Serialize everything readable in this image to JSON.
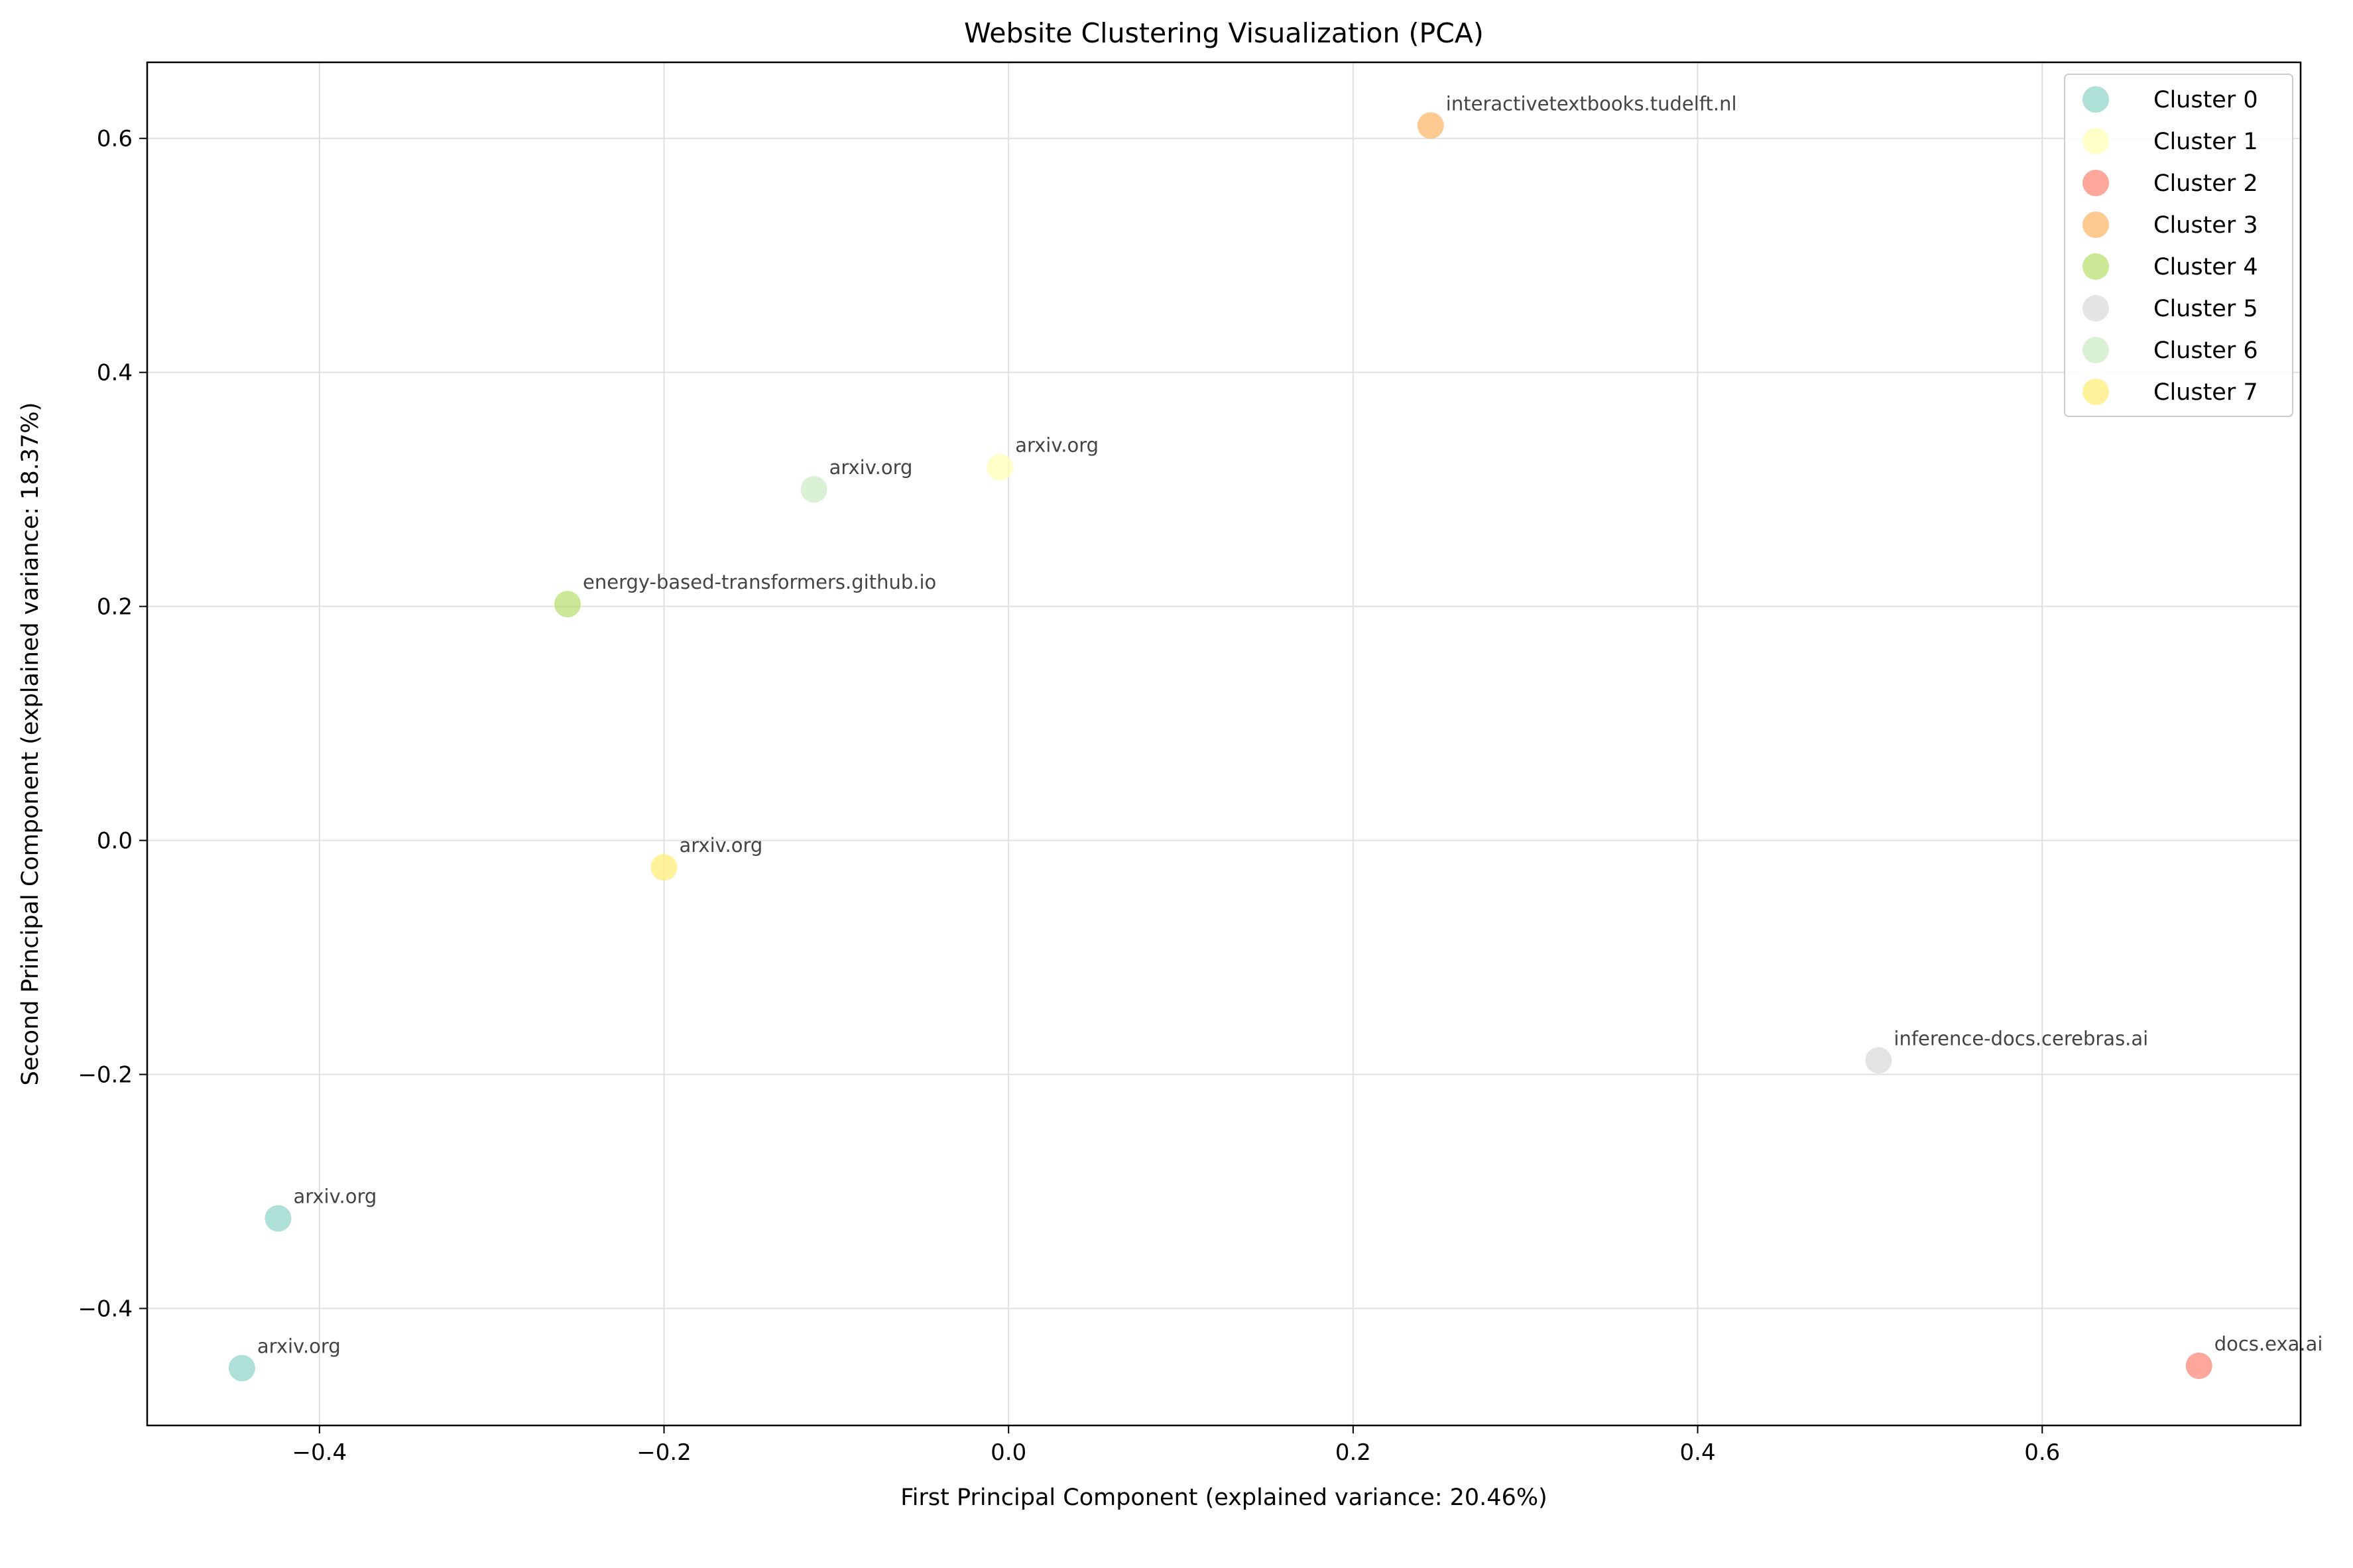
{
  "chart_data": {
    "type": "scatter",
    "title": "Website Clustering Visualization (PCA)",
    "xlabel": "First Principal Component (explained variance: 20.46%)",
    "ylabel": "Second Principal Component (explained variance: 18.37%)",
    "xlim": [
      -0.5,
      0.75
    ],
    "ylim": [
      -0.5,
      0.665
    ],
    "xticks": [
      -0.4,
      -0.2,
      0.0,
      0.2,
      0.4,
      0.6
    ],
    "xtick_labels": [
      "−0.4",
      "−0.2",
      "0.0",
      "0.2",
      "0.4",
      "0.6"
    ],
    "yticks": [
      -0.4,
      -0.2,
      0.0,
      0.2,
      0.4,
      0.6
    ],
    "ytick_labels": [
      "−0.4",
      "−0.2",
      "0.0",
      "0.2",
      "0.4",
      "0.6"
    ],
    "grid": true,
    "legend_position": "top-right",
    "series": [
      {
        "name": "Cluster 0",
        "color": "#8dd3c7",
        "points": [
          {
            "x": -0.424,
            "y": -0.323,
            "label": "arxiv.org"
          },
          {
            "x": -0.445,
            "y": -0.451,
            "label": "arxiv.org"
          }
        ]
      },
      {
        "name": "Cluster 1",
        "color": "#ffffb3",
        "points": [
          {
            "x": -0.005,
            "y": 0.319,
            "label": "arxiv.org"
          }
        ]
      },
      {
        "name": "Cluster 2",
        "color": "#fb8072",
        "points": [
          {
            "x": 0.691,
            "y": -0.449,
            "label": "docs.exa.ai"
          }
        ]
      },
      {
        "name": "Cluster 3",
        "color": "#fdb462",
        "points": [
          {
            "x": 0.245,
            "y": 0.611,
            "label": "interactivetextbooks.tudelft.nl"
          }
        ]
      },
      {
        "name": "Cluster 4",
        "color": "#b3de69",
        "points": [
          {
            "x": -0.256,
            "y": 0.202,
            "label": "energy-based-transformers.github.io"
          }
        ]
      },
      {
        "name": "Cluster 5",
        "color": "#d9d9d9",
        "points": [
          {
            "x": 0.505,
            "y": -0.188,
            "label": "inference-docs.cerebras.ai"
          }
        ]
      },
      {
        "name": "Cluster 6",
        "color": "#ccebc5",
        "points": [
          {
            "x": -0.113,
            "y": 0.3,
            "label": "arxiv.org"
          }
        ]
      },
      {
        "name": "Cluster 7",
        "color": "#ffed6f",
        "points": [
          {
            "x": -0.2,
            "y": -0.023,
            "label": "arxiv.org"
          }
        ]
      }
    ]
  }
}
